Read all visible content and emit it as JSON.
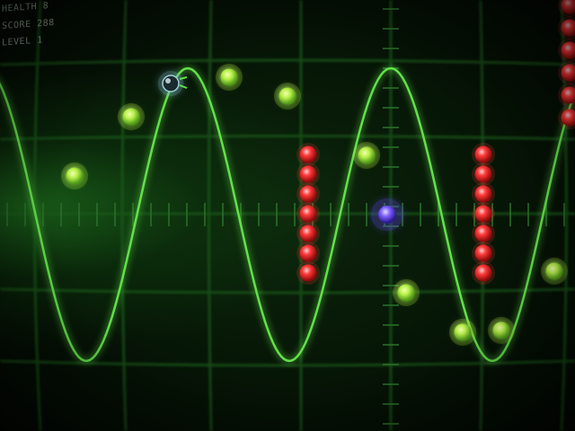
{
  "hud": {
    "health": "HEALTH 8",
    "score": "SCORE 288",
    "level": "LEVEL 1"
  },
  "colors": {
    "wave": "#63e04a",
    "orb_green": "#b8f04a",
    "orb_red": "#ff3a3a",
    "player": "#7a5cff",
    "grid": "#1f5a1f"
  },
  "entities": {
    "player_icon": "purple-orb-icon",
    "collectible_icon": "green-orb-icon",
    "hazard_icon": "red-orb-icon",
    "enemy_icon": "dark-probe-icon"
  }
}
